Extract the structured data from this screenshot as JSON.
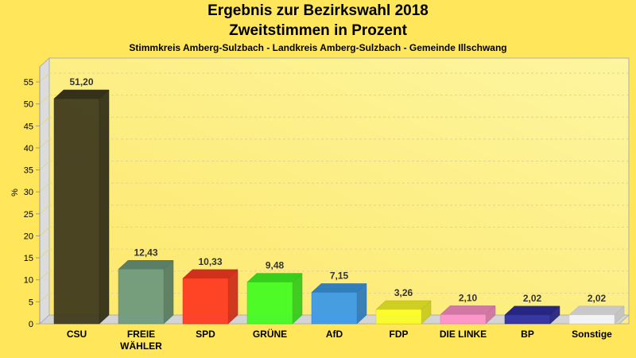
{
  "chart_data": {
    "type": "bar",
    "title": "Ergebnis zur Bezirkswahl 2018",
    "subtitle": "Zweitstimmen in Prozent",
    "subsubtitle": "Stimmkreis Amberg-Sulzbach - Landkreis Amberg-Sulzbach - Gemeinde Illschwang",
    "xlabel": "",
    "ylabel": "%",
    "ylim": [
      0,
      58
    ],
    "yticks": [
      0,
      5,
      10,
      15,
      20,
      25,
      30,
      35,
      40,
      45,
      50,
      55
    ],
    "grid": true,
    "categories": [
      "CSU",
      "FREIE WÄHLER",
      "SPD",
      "GRÜNE",
      "AfD",
      "FDP",
      "DIE LINKE",
      "BP",
      "Sonstige"
    ],
    "category_lines": [
      [
        "CSU"
      ],
      [
        "FREIE",
        "WÄHLER"
      ],
      [
        "SPD"
      ],
      [
        "GRÜNE"
      ],
      [
        "AfD"
      ],
      [
        "FDP"
      ],
      [
        "DIE LINKE"
      ],
      [
        "BP"
      ],
      [
        "Sonstige"
      ]
    ],
    "values": [
      51.2,
      12.43,
      10.33,
      9.48,
      7.15,
      3.26,
      2.1,
      2.02,
      2.02
    ],
    "value_labels": [
      "51,20",
      "12,43",
      "10,33",
      "9,48",
      "7,15",
      "3,26",
      "2,10",
      "2,02",
      "2,02"
    ],
    "colors": [
      "#403b1e",
      "#6f9a7d",
      "#ff3b22",
      "#44fc22",
      "#3c9ae6",
      "#fcfc28",
      "#ff93c8",
      "#2f2fa0",
      "#f4f4f4"
    ]
  }
}
